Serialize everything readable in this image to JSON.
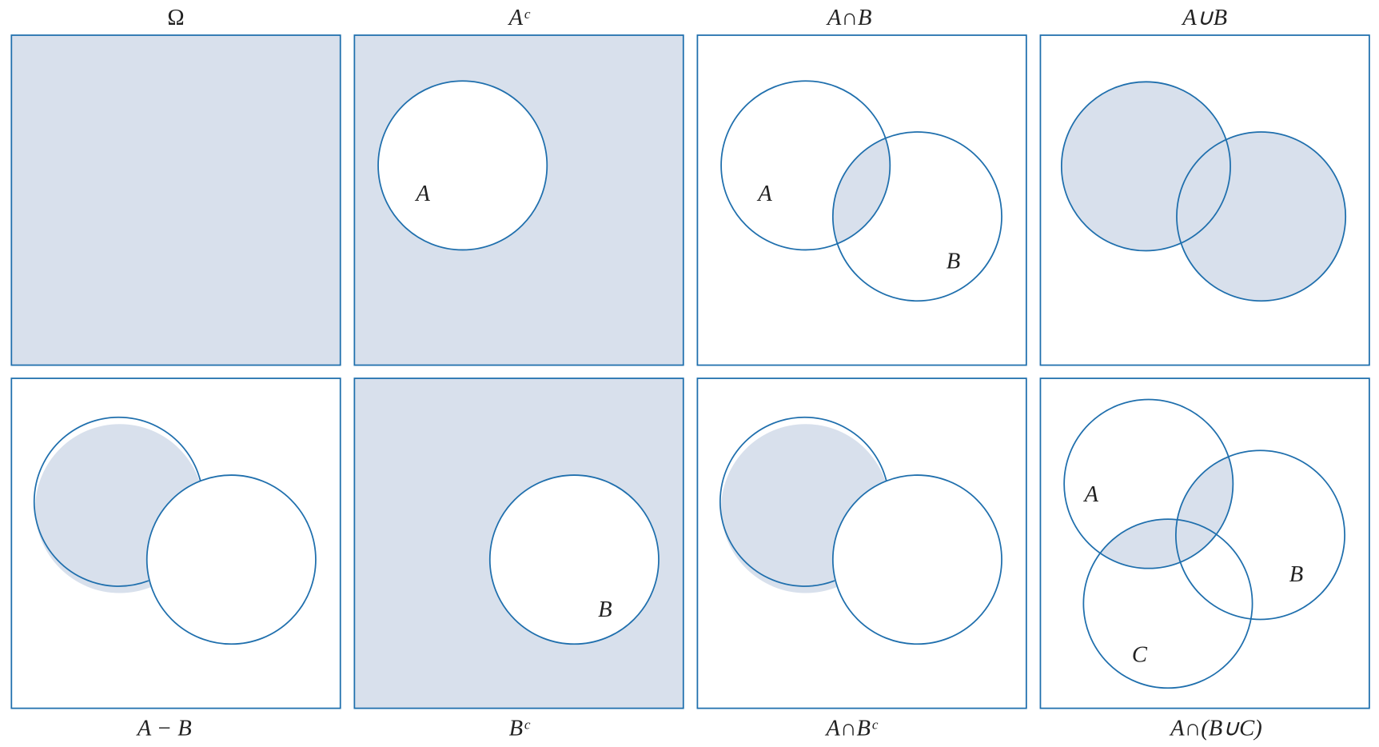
{
  "colors": {
    "shade": "#d8e0ec",
    "outline": "#1f6fad"
  },
  "panels": [
    {
      "caption": "Ω",
      "set_labels": []
    },
    {
      "caption": "Aᶜ",
      "set_labels": [
        "A"
      ]
    },
    {
      "caption": "A∩B",
      "set_labels": [
        "A",
        "B"
      ]
    },
    {
      "caption": "A∪B",
      "set_labels": []
    },
    {
      "caption": "A − B",
      "set_labels": []
    },
    {
      "caption": "Bᶜ",
      "set_labels": [
        "B"
      ]
    },
    {
      "caption": "A∩Bᶜ",
      "set_labels": []
    },
    {
      "caption": "A∩(B∪C)",
      "set_labels": [
        "A",
        "B",
        "C"
      ]
    }
  ]
}
